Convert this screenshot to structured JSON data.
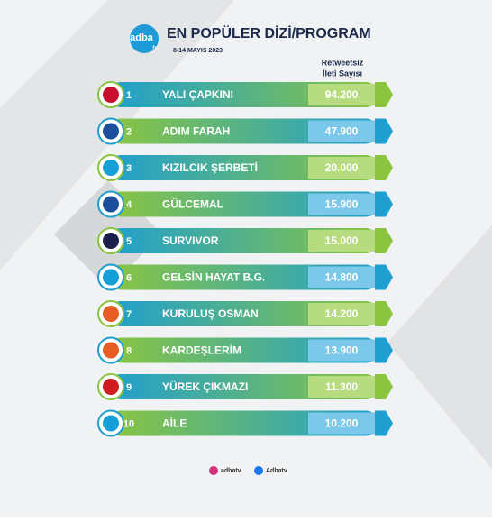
{
  "header": {
    "logo": "adba",
    "logo_sub": "tv",
    "title": "EN POPÜLER DİZİ/PROGRAM",
    "subtitle": "8-14 MAYIS 2023"
  },
  "column_header": [
    "Retweetsiz",
    "İleti Sayısı"
  ],
  "rows": [
    {
      "rank": "1",
      "title": "YALI ÇAPKINI",
      "value": "94.200"
    },
    {
      "rank": "2",
      "title": "ADIM FARAH",
      "value": "47.900"
    },
    {
      "rank": "3",
      "title": "KIZILCIK ŞERBETİ",
      "value": "20.000"
    },
    {
      "rank": "4",
      "title": "GÜLCEMAL",
      "value": "15.900"
    },
    {
      "rank": "5",
      "title": "SURVIVOR",
      "value": "15.000"
    },
    {
      "rank": "6",
      "title": "GELSİN HAYAT B.G.",
      "value": "14.800"
    },
    {
      "rank": "7",
      "title": "KURULUŞ OSMAN",
      "value": "14.200"
    },
    {
      "rank": "8",
      "title": "KARDEŞLERİM",
      "value": "13.900"
    },
    {
      "rank": "9",
      "title": "YÜREK ÇIKMAZI",
      "value": "11.300"
    },
    {
      "rank": "10",
      "title": "AİLE",
      "value": "10.200"
    }
  ],
  "footer": {
    "instagram": "adbatv",
    "facebook": "Adbatv"
  }
}
